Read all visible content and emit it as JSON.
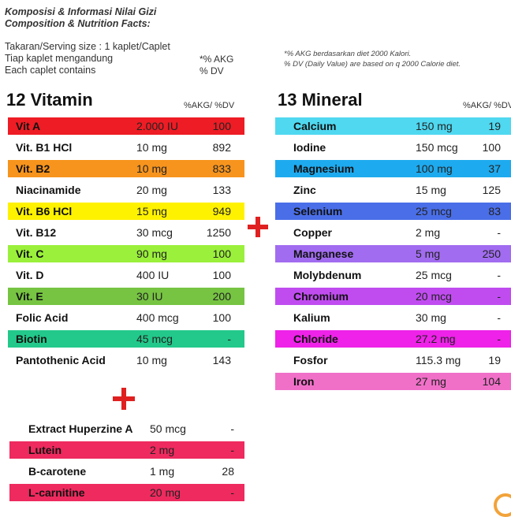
{
  "header": {
    "title_id": "Komposisi & Informasi Nilai Gizi",
    "title_en": "Composition & Nutrition Facts:"
  },
  "serving": {
    "line1": "Takaran/Serving size : 1 kaplet/Caplet",
    "line2": "Tiap kaplet mengandung",
    "line3": "Each caplet contains",
    "akg_label": "*% AKG",
    "dv_label": "% DV",
    "note1": "*% AKG berdasarkan diet 2000 Kalori.",
    "note2": "% DV (Daily Value) are based on q 2000 Calorie diet."
  },
  "vitamins": {
    "title": "12 Vitamin",
    "col_header": "%AKG/ %DV",
    "items": [
      {
        "name": "Vit A",
        "amount": "2.000 IU",
        "pct": "100",
        "color": "#ee1c24"
      },
      {
        "name": "Vit. B1 HCl",
        "amount": "10 mg",
        "pct": "892",
        "color": ""
      },
      {
        "name": "Vit. B2",
        "amount": "10 mg",
        "pct": "833",
        "color": "#f7941d"
      },
      {
        "name": "Niacinamide",
        "amount": "20 mg",
        "pct": "133",
        "color": ""
      },
      {
        "name": "Vit. B6 HCl",
        "amount": "15 mg",
        "pct": "949",
        "color": "#fff200"
      },
      {
        "name": "Vit. B12",
        "amount": "30 mcg",
        "pct": "1250",
        "color": ""
      },
      {
        "name": "Vit. C",
        "amount": "90 mg",
        "pct": "100",
        "color": "#9af03a"
      },
      {
        "name": "Vit. D",
        "amount": "400 IU",
        "pct": "100",
        "color": ""
      },
      {
        "name": "Vit. E",
        "amount": "30 IU",
        "pct": "200",
        "color": "#76c442"
      },
      {
        "name": "Folic Acid",
        "amount": "400 mcg",
        "pct": "100",
        "color": ""
      },
      {
        "name": "Biotin",
        "amount": "45 mcg",
        "pct": "-",
        "color": "#22c98a"
      },
      {
        "name": "Pantothenic Acid",
        "amount": "10 mg",
        "pct": "143",
        "color": ""
      }
    ]
  },
  "minerals": {
    "title": "13 Mineral",
    "col_header": "%AKG/ %DV",
    "items": [
      {
        "name": "Calcium",
        "amount": "150 mg",
        "pct": "19",
        "color": "#4fd8f0"
      },
      {
        "name": "Iodine",
        "amount": "150 mcg",
        "pct": "100",
        "color": ""
      },
      {
        "name": "Magnesium",
        "amount": "100 mg",
        "pct": "37",
        "color": "#1eaaee"
      },
      {
        "name": "Zinc",
        "amount": "15 mg",
        "pct": "125",
        "color": ""
      },
      {
        "name": "Selenium",
        "amount": "25 mcg",
        "pct": "83",
        "color": "#4a6ee8"
      },
      {
        "name": "Copper",
        "amount": "2 mg",
        "pct": "-",
        "color": ""
      },
      {
        "name": "Manganese",
        "amount": "5 mg",
        "pct": "250",
        "color": "#a16cf0"
      },
      {
        "name": "Molybdenum",
        "amount": "25 mcg",
        "pct": "-",
        "color": ""
      },
      {
        "name": "Chromium",
        "amount": "20 mcg",
        "pct": "-",
        "color": "#c04cf0"
      },
      {
        "name": "Kalium",
        "amount": "30 mg",
        "pct": "-",
        "color": ""
      },
      {
        "name": "Chloride",
        "amount": "27.2 mg",
        "pct": "-",
        "color": "#ee22e8"
      },
      {
        "name": "Fosfor",
        "amount": "115.3 mg",
        "pct": "19",
        "color": ""
      },
      {
        "name": "Iron",
        "amount": "27 mg",
        "pct": "104",
        "color": "#f070c8"
      }
    ]
  },
  "others": {
    "items": [
      {
        "name": "Extract Huperzine A",
        "amount": "50 mcg",
        "pct": "-",
        "color": ""
      },
      {
        "name": "Lutein",
        "amount": "2 mg",
        "pct": "-",
        "color": "#ee2a5e"
      },
      {
        "name": "B-carotene",
        "amount": "1 mg",
        "pct": "28",
        "color": ""
      },
      {
        "name": "L-carnitine",
        "amount": "20 mg",
        "pct": "-",
        "color": "#ee2a5e"
      }
    ]
  },
  "icons": {
    "plus": "plus-icon",
    "corner": "orange-arc-decoration"
  }
}
